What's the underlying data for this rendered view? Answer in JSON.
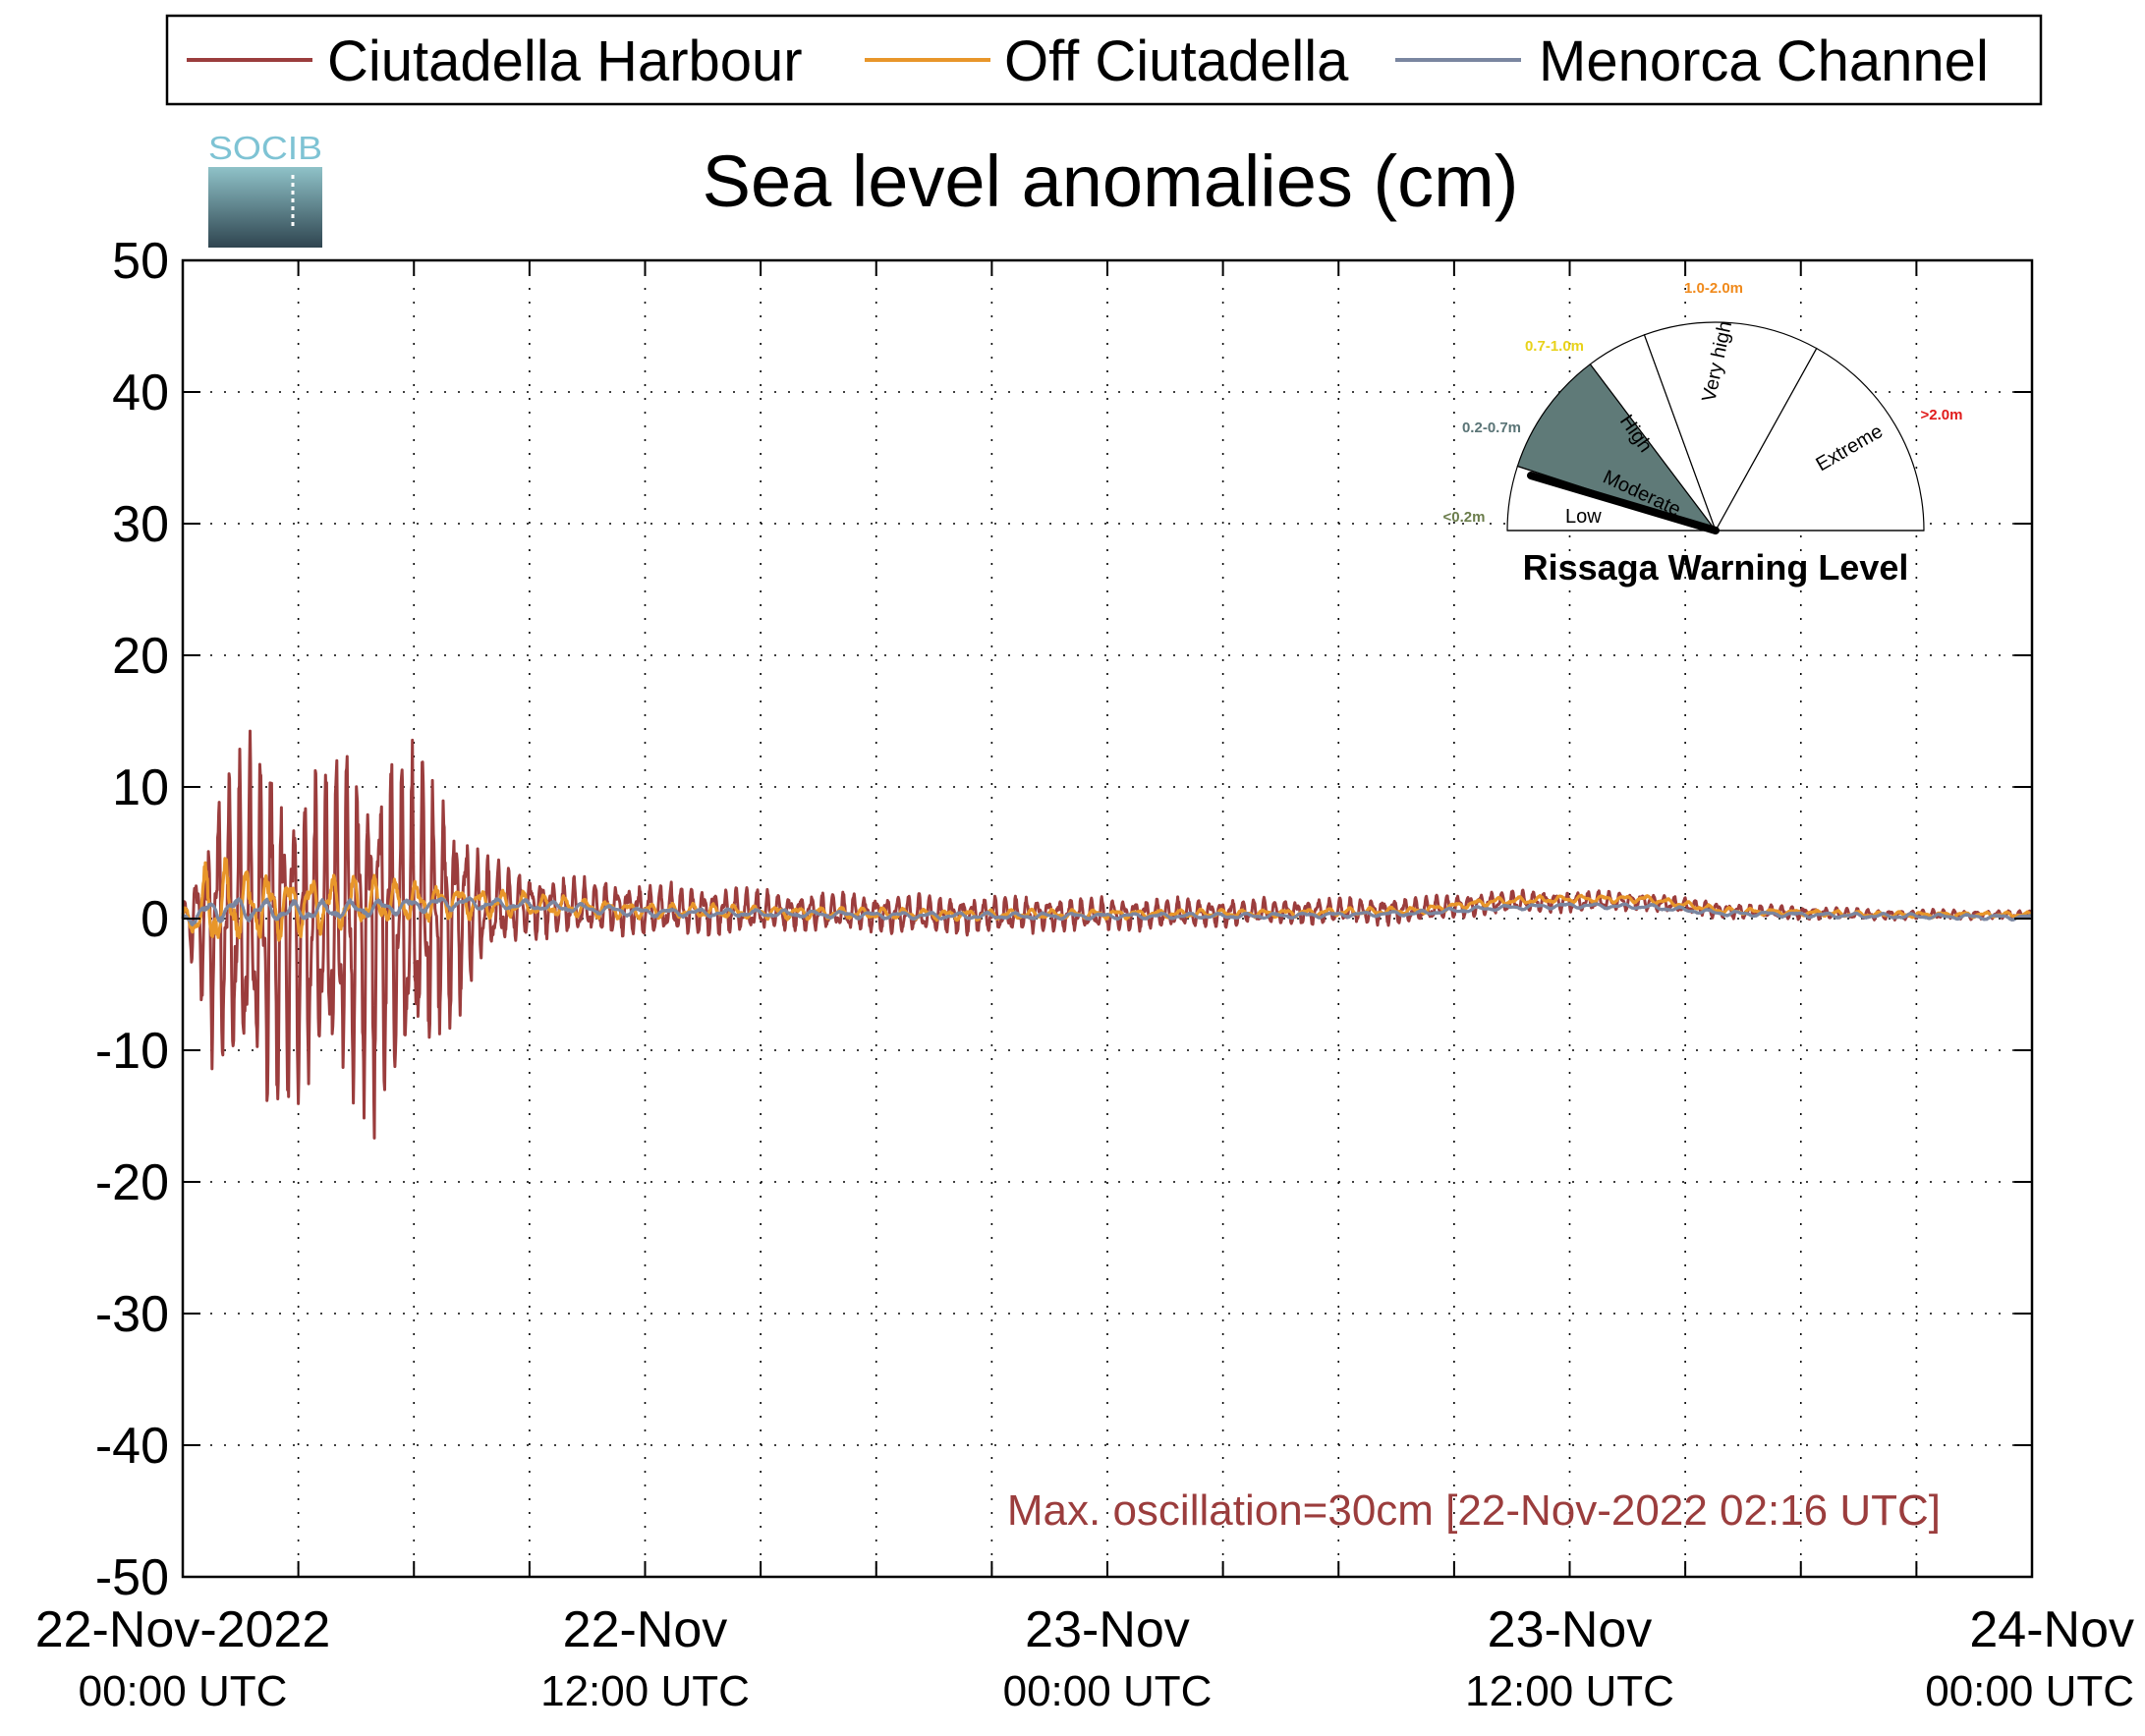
{
  "chart_data": {
    "type": "line",
    "title": "Sea level anomalies (cm)",
    "xlabel": "",
    "ylabel": "",
    "ylim": [
      -50,
      50
    ],
    "yticks": [
      "50",
      "40",
      "30",
      "20",
      "10",
      "0",
      "-10",
      "-20",
      "-30",
      "-40",
      "-50"
    ],
    "xlim_hours": [
      0,
      48
    ],
    "xticks": [
      {
        "date": "22-Nov-2022",
        "time": "00:00 UTC"
      },
      {
        "date": "22-Nov",
        "time": "12:00 UTC"
      },
      {
        "date": "23-Nov",
        "time": "00:00 UTC"
      },
      {
        "date": "23-Nov",
        "time": "12:00 UTC"
      },
      {
        "date": "24-Nov",
        "time": "00:00 UTC"
      }
    ],
    "grid": true,
    "legend_position": "top",
    "annotation": "Max. oscillation=30cm [22-Nov-2022 02:16 UTC]",
    "series": [
      {
        "name": "Ciutadella Harbour",
        "color": "#9b3d3d",
        "envelope": [
          [
            0,
            1
          ],
          [
            0.5,
            6
          ],
          [
            0.8,
            11
          ],
          [
            1.5,
            13
          ],
          [
            2.3,
            15
          ],
          [
            3,
            12
          ],
          [
            4,
            13
          ],
          [
            5,
            15
          ],
          [
            6,
            13
          ],
          [
            7,
            9
          ],
          [
            7.8,
            4
          ],
          [
            9,
            2.5
          ],
          [
            11,
            2.2
          ],
          [
            13,
            2
          ],
          [
            16,
            1.5
          ],
          [
            20,
            1.5
          ],
          [
            24,
            1.3
          ],
          [
            28,
            1
          ],
          [
            32,
            1
          ],
          [
            36,
            0.8
          ],
          [
            40,
            0.6
          ],
          [
            44,
            0.4
          ],
          [
            48,
            0.3
          ]
        ],
        "baseline": [
          [
            0,
            0
          ],
          [
            3,
            -1
          ],
          [
            5,
            -0.5
          ],
          [
            7,
            0.5
          ],
          [
            9,
            1
          ],
          [
            12,
            0.7
          ],
          [
            16,
            0.5
          ],
          [
            20,
            0.3
          ],
          [
            24,
            0.3
          ],
          [
            28,
            0.5
          ],
          [
            32,
            0.6
          ],
          [
            34,
            1.2
          ],
          [
            36,
            1.3
          ],
          [
            38,
            1.3
          ],
          [
            40,
            0.6
          ],
          [
            44,
            0.3
          ],
          [
            48,
            0.3
          ]
        ]
      },
      {
        "name": "Off Ciutadella",
        "color": "#e8962a",
        "envelope": [
          [
            0,
            0.5
          ],
          [
            0.7,
            4
          ],
          [
            1.5,
            3
          ],
          [
            3,
            2.5
          ],
          [
            5,
            2
          ],
          [
            7,
            1.3
          ],
          [
            9,
            1
          ],
          [
            12,
            0.6
          ],
          [
            20,
            0.4
          ],
          [
            28,
            0.3
          ],
          [
            36,
            0.3
          ],
          [
            48,
            0.2
          ]
        ],
        "baseline": [
          [
            0,
            0
          ],
          [
            1,
            1
          ],
          [
            3,
            1
          ],
          [
            5,
            1.2
          ],
          [
            7,
            1.3
          ],
          [
            9,
            1
          ],
          [
            12,
            0.6
          ],
          [
            20,
            0.3
          ],
          [
            28,
            0.4
          ],
          [
            32,
            0.6
          ],
          [
            34,
            1.3
          ],
          [
            36,
            1.5
          ],
          [
            38,
            1.5
          ],
          [
            40,
            0.6
          ],
          [
            44,
            0.3
          ],
          [
            48,
            0.3
          ]
        ]
      },
      {
        "name": "Menorca Channel",
        "color": "#7a86a0",
        "envelope": [
          [
            0,
            0.5
          ],
          [
            1,
            1
          ],
          [
            3,
            0.8
          ],
          [
            6,
            0.6
          ],
          [
            9,
            0.4
          ],
          [
            15,
            0.3
          ],
          [
            30,
            0.2
          ],
          [
            48,
            0.2
          ]
        ],
        "baseline": [
          [
            0,
            0
          ],
          [
            1,
            0.8
          ],
          [
            3,
            0.5
          ],
          [
            5,
            0.8
          ],
          [
            7,
            1.2
          ],
          [
            9,
            1
          ],
          [
            12,
            0.5
          ],
          [
            20,
            0.2
          ],
          [
            28,
            0.2
          ],
          [
            32,
            0.4
          ],
          [
            34,
            0.8
          ],
          [
            36,
            1
          ],
          [
            38,
            0.9
          ],
          [
            40,
            0.4
          ],
          [
            44,
            0.2
          ],
          [
            48,
            0.1
          ]
        ]
      }
    ]
  },
  "logo": {
    "text": "SOCIB"
  },
  "gauge": {
    "title": "Rissaga Warning Level",
    "levels": [
      {
        "name": "Low",
        "range": "<0.2m",
        "range_color": "#6b7d4b"
      },
      {
        "name": "Moderate",
        "range": "0.2-0.7m",
        "range_color": "#5a7476"
      },
      {
        "name": "High",
        "range": "0.7-1.0m",
        "range_color": "#e8d21a"
      },
      {
        "name": "Very high",
        "range": "1.0-2.0m",
        "range_color": "#f08a1c"
      },
      {
        "name": "Extreme",
        "range": ">2.0m",
        "range_color": "#e01b1b"
      }
    ],
    "active_level": "Moderate",
    "active_fill": "#5f7a78"
  }
}
